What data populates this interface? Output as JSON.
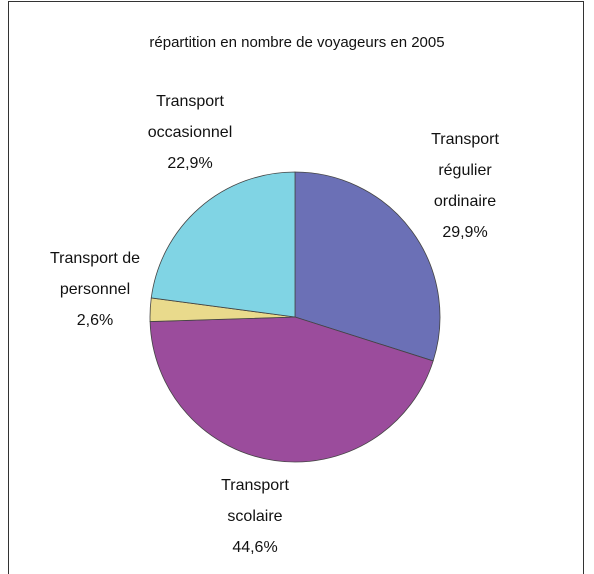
{
  "chart_data": {
    "type": "pie",
    "title": "répartition en nombre de voyageurs en 2005",
    "categories": [
      "Transport régulier ordinaire",
      "Transport scolaire",
      "Transport de personnel",
      "Transport occasionnel"
    ],
    "values": [
      29.9,
      44.6,
      2.6,
      22.9
    ],
    "value_labels": [
      "29,9%",
      "44,6%",
      "2,6%",
      "22,9%"
    ],
    "colors": [
      "#6b70b6",
      "#9b4c9c",
      "#e9da8c",
      "#80d4e4"
    ]
  }
}
